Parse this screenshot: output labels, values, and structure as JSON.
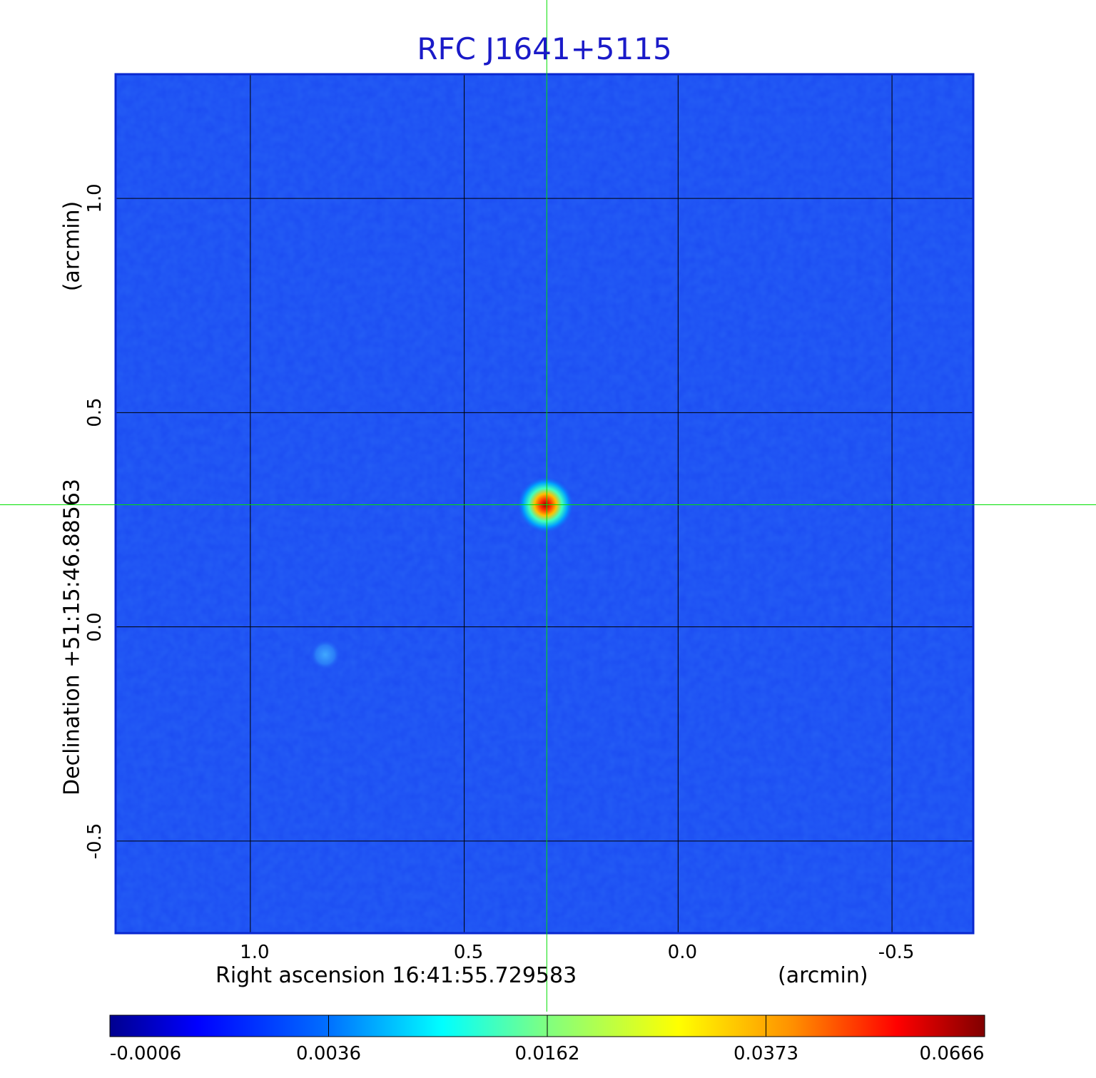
{
  "chart_data": {
    "type": "heatmap",
    "title": "RFC J1641+5115",
    "xlabel": "Right ascension  16:41:55.729583",
    "xunit": "(arcmin)",
    "ylabel": "Declination  +51:15:46.88563",
    "yunit": "(arcmin)",
    "x_ticks": [
      "1.0",
      "0.5",
      "0.0",
      "-0.5"
    ],
    "x_tick_values": [
      1.0,
      0.5,
      0.0,
      -0.5
    ],
    "y_ticks": [
      "1.0",
      "0.5",
      "0.0",
      "-0.5"
    ],
    "y_tick_values": [
      1.0,
      0.5,
      0.0,
      -0.5
    ],
    "xlim": [
      1.315,
      -0.69
    ],
    "ylim": [
      -0.715,
      1.29
    ],
    "grid": true,
    "crosshair": {
      "x": 0.307,
      "y": 0.285
    },
    "sources": [
      {
        "x": 0.31,
        "y": 0.285,
        "peak": 0.0666
      },
      {
        "x": 0.825,
        "y": -0.065,
        "peak": 0.005
      }
    ],
    "colorbar": {
      "ticks": [
        "-0.0006",
        "0.0036",
        "0.0162",
        "0.0373",
        "0.0666"
      ],
      "tick_values": [
        -0.0006,
        0.0036,
        0.0162,
        0.0373,
        0.0666
      ],
      "colormap": "jet",
      "colors": [
        "#00008f",
        "#0000ff",
        "#00ffff",
        "#ffff00",
        "#ff0000",
        "#800000"
      ]
    },
    "colors": {
      "background_field": "#1c4cf2",
      "title": "#1a1ac8",
      "crosshair": "#00e000",
      "grid": "#000000"
    }
  }
}
